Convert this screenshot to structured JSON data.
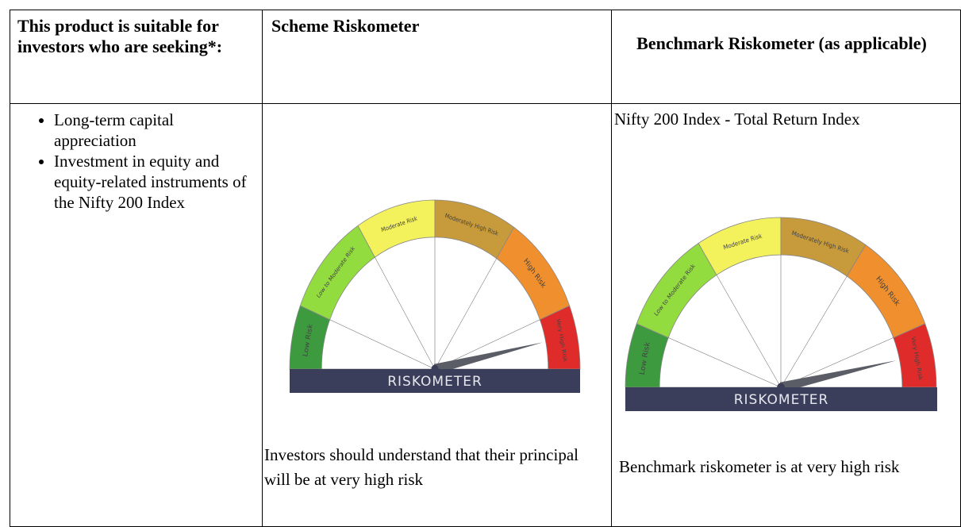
{
  "table": {
    "headers": [
      "This product is suitable for investors who are seeking*:",
      "Scheme Riskometer",
      "Benchmark Riskometer (as applicable)"
    ],
    "objectives": [
      "Long-term capital appreciation",
      "Investment in equity and equity-related instruments of the Nifty 200 Index"
    ],
    "scheme_caption": "Investors should understand that their principal will be at very high risk",
    "benchmark_name": "Nifty 200 Index - Total Return Index",
    "benchmark_caption": "Benchmark riskometer is at very high risk"
  },
  "riskometer": {
    "title": "RISKOMETER",
    "levels": [
      "Low Risk",
      "Low to Moderate Risk",
      "Moderate Risk",
      "Moderately High Risk",
      "High Risk",
      "Very High Risk"
    ]
  }
}
